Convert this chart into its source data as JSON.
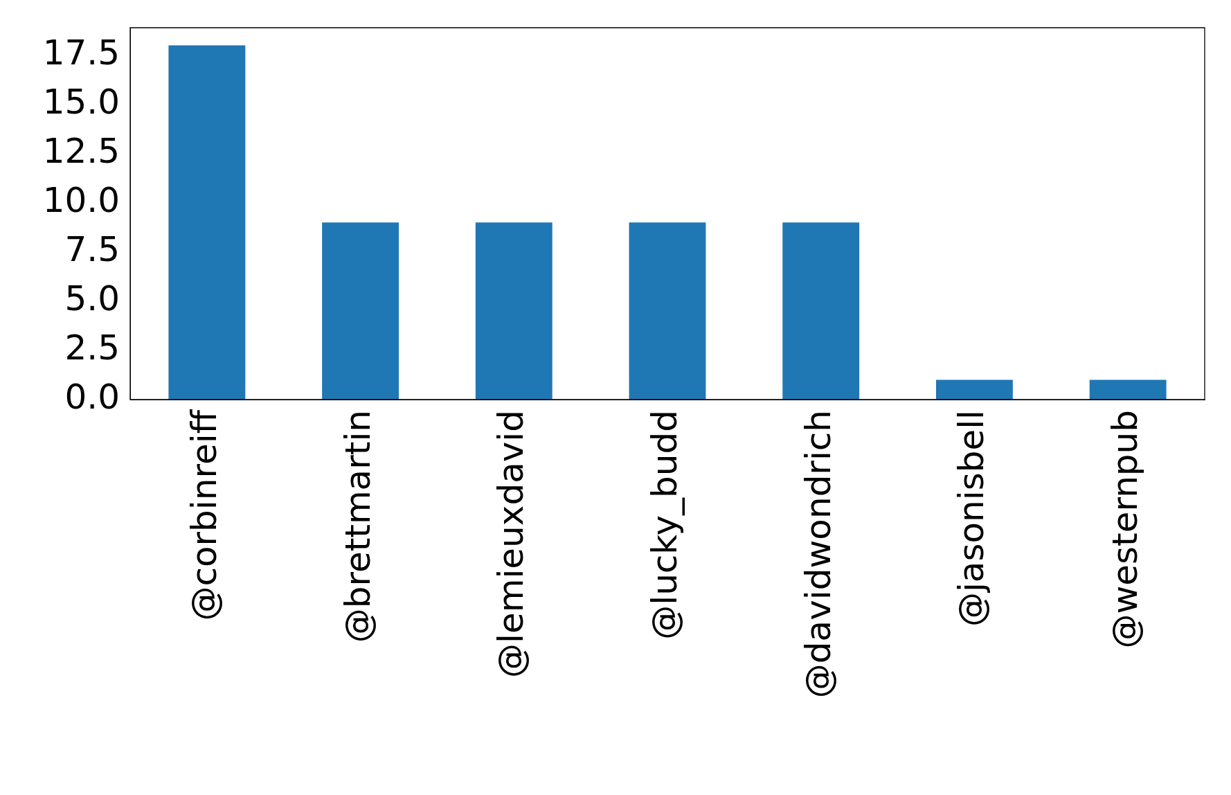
{
  "chart_data": {
    "type": "bar",
    "categories": [
      "@corbinreiff",
      "@brettmartin",
      "@lemieuxdavid",
      "@lucky_budd",
      "@davidwondrich",
      "@jasonisbell",
      "@westernpub"
    ],
    "values": [
      18,
      9,
      9,
      9,
      9,
      1,
      1
    ],
    "color": "#1f77b4",
    "ylim": [
      0,
      18.9
    ],
    "yticks": [
      {
        "value": 0,
        "label": "0.0"
      },
      {
        "value": 2.5,
        "label": "2.5"
      },
      {
        "value": 5,
        "label": "5.0"
      },
      {
        "value": 7.5,
        "label": "7.5"
      },
      {
        "value": 10,
        "label": "10.0"
      },
      {
        "value": 12.5,
        "label": "12.5"
      },
      {
        "value": 15,
        "label": "15.0"
      },
      {
        "value": 17.5,
        "label": "17.5"
      }
    ],
    "grid": false
  }
}
